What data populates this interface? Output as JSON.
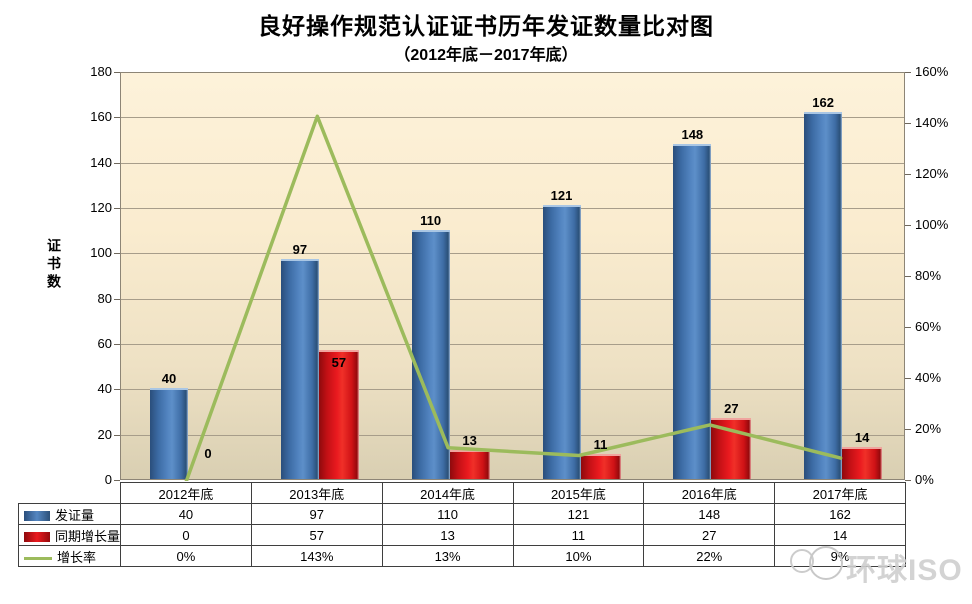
{
  "title": "良好操作规范认证证书历年发证数量比对图",
  "subtitle": "（2012年底－2017年底）",
  "watermark": {
    "text": "环球ISO"
  },
  "chart_data": {
    "type": "bar",
    "combo": "clustered bars (primary axis) + line (secondary axis) with attached data table legend",
    "title": "良好操作规范认证证书历年发证数量比对图",
    "subtitle": "（2012年底－2017年底）",
    "categories": [
      "2012年底",
      "2013年底",
      "2014年底",
      "2015年底",
      "2016年底",
      "2017年底"
    ],
    "series": [
      {
        "name": "发证量",
        "type": "bar",
        "axis": "primary",
        "color": "#3f72ab",
        "values": [
          40,
          97,
          110,
          121,
          148,
          162
        ],
        "labels": [
          "40",
          "97",
          "110",
          "121",
          "148",
          "162"
        ]
      },
      {
        "name": "同期增长量",
        "type": "bar",
        "axis": "primary",
        "color": "#e51519",
        "values": [
          0,
          57,
          13,
          11,
          27,
          14
        ],
        "labels": [
          "0",
          "57",
          "13",
          "11",
          "27",
          "14"
        ]
      },
      {
        "name": "增长率",
        "type": "line",
        "axis": "secondary",
        "color": "#9cbb5c",
        "values": [
          0,
          143,
          13,
          10,
          22,
          9
        ],
        "labels": [
          "0%",
          "143%",
          "13%",
          "10%",
          "22%",
          "9%"
        ]
      }
    ],
    "primary_axis": {
      "title": "证书数",
      "min": 0,
      "max": 180,
      "step": 20,
      "ticks": [
        "180",
        "160",
        "140",
        "120",
        "100",
        "80",
        "60",
        "40",
        "20",
        "0"
      ]
    },
    "secondary_axis": {
      "min": "0%",
      "max": "160%",
      "step": "20%",
      "ticks": [
        "160%",
        "140%",
        "120%",
        "100%",
        "80%",
        "60%",
        "40%",
        "20%",
        "0%"
      ]
    },
    "grid": true,
    "legend_position": "data-table-left"
  }
}
